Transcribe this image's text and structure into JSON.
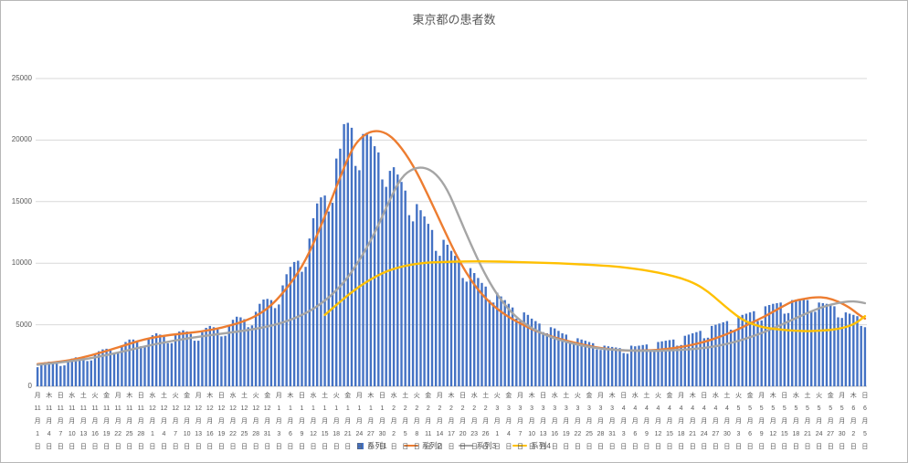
{
  "chart_data": {
    "type": "bar",
    "title": "東京都の患者数",
    "ylim": [
      0,
      25000
    ],
    "ytick_step": 5000,
    "ytick_labels": [
      "0",
      "5000",
      "10000",
      "15000",
      "20000",
      "25000"
    ],
    "n_days": 217,
    "x_start": "11月1日",
    "x_end": "6月5日",
    "xtick_every_days": 3,
    "month_suffix": "月",
    "day_suffix": "日",
    "grid": true,
    "legend_position": "bottom",
    "xticks": [
      [
        "月",
        "11",
        "1"
      ],
      [
        "木",
        "11",
        "4"
      ],
      [
        "日",
        "11",
        "7"
      ],
      [
        "水",
        "11",
        "10"
      ],
      [
        "土",
        "11",
        "13"
      ],
      [
        "火",
        "11",
        "16"
      ],
      [
        "金",
        "11",
        "19"
      ],
      [
        "月",
        "11",
        "22"
      ],
      [
        "木",
        "11",
        "25"
      ],
      [
        "日",
        "11",
        "28"
      ],
      [
        "水",
        "12",
        "1"
      ],
      [
        "土",
        "12",
        "4"
      ],
      [
        "火",
        "12",
        "7"
      ],
      [
        "金",
        "12",
        "10"
      ],
      [
        "月",
        "12",
        "13"
      ],
      [
        "木",
        "12",
        "16"
      ],
      [
        "日",
        "12",
        "19"
      ],
      [
        "水",
        "12",
        "22"
      ],
      [
        "土",
        "12",
        "25"
      ],
      [
        "火",
        "12",
        "28"
      ],
      [
        "金",
        "12",
        "31"
      ],
      [
        "月",
        "1",
        "3"
      ],
      [
        "木",
        "1",
        "6"
      ],
      [
        "日",
        "1",
        "9"
      ],
      [
        "水",
        "1",
        "12"
      ],
      [
        "土",
        "1",
        "15"
      ],
      [
        "火",
        "1",
        "18"
      ],
      [
        "金",
        "1",
        "21"
      ],
      [
        "月",
        "1",
        "24"
      ],
      [
        "木",
        "1",
        "27"
      ],
      [
        "日",
        "1",
        "30"
      ],
      [
        "水",
        "2",
        "2"
      ],
      [
        "土",
        "2",
        "5"
      ],
      [
        "火",
        "2",
        "8"
      ],
      [
        "金",
        "2",
        "11"
      ],
      [
        "月",
        "2",
        "14"
      ],
      [
        "木",
        "2",
        "17"
      ],
      [
        "日",
        "2",
        "20"
      ],
      [
        "水",
        "2",
        "23"
      ],
      [
        "土",
        "2",
        "26"
      ],
      [
        "火",
        "3",
        "1"
      ],
      [
        "金",
        "3",
        "4"
      ],
      [
        "月",
        "3",
        "7"
      ],
      [
        "木",
        "3",
        "10"
      ],
      [
        "日",
        "3",
        "13"
      ],
      [
        "水",
        "3",
        "16"
      ],
      [
        "土",
        "3",
        "19"
      ],
      [
        "火",
        "3",
        "22"
      ],
      [
        "金",
        "3",
        "25"
      ],
      [
        "月",
        "3",
        "28"
      ],
      [
        "木",
        "3",
        "31"
      ],
      [
        "日",
        "4",
        "3"
      ],
      [
        "水",
        "4",
        "6"
      ],
      [
        "土",
        "4",
        "9"
      ],
      [
        "火",
        "4",
        "12"
      ],
      [
        "金",
        "4",
        "15"
      ],
      [
        "月",
        "4",
        "18"
      ],
      [
        "木",
        "4",
        "21"
      ],
      [
        "日",
        "4",
        "24"
      ],
      [
        "水",
        "4",
        "27"
      ],
      [
        "土",
        "4",
        "30"
      ],
      [
        "火",
        "5",
        "3"
      ],
      [
        "金",
        "5",
        "6"
      ],
      [
        "月",
        "5",
        "9"
      ],
      [
        "木",
        "5",
        "12"
      ],
      [
        "日",
        "5",
        "15"
      ],
      [
        "水",
        "5",
        "18"
      ],
      [
        "土",
        "5",
        "21"
      ],
      [
        "火",
        "5",
        "24"
      ],
      [
        "金",
        "5",
        "27"
      ],
      [
        "月",
        "5",
        "30"
      ],
      [
        "木",
        "6",
        "2"
      ],
      [
        "日",
        "6",
        "5"
      ]
    ],
    "series": [
      {
        "name": "系列1",
        "type": "bar",
        "color": "#4472C4",
        "values": [
          1550,
          1800,
          1950,
          2000,
          1950,
          1900,
          1650,
          1700,
          2050,
          2250,
          2350,
          2370,
          2330,
          2050,
          2100,
          2600,
          2850,
          3000,
          3050,
          3000,
          2650,
          2700,
          3300,
          3600,
          3800,
          3800,
          3700,
          3250,
          3250,
          3900,
          4150,
          4300,
          4200,
          4050,
          3500,
          3500,
          4150,
          4450,
          4550,
          4450,
          4250,
          3700,
          3700,
          4400,
          4750,
          4900,
          4800,
          4650,
          4050,
          4100,
          4950,
          5400,
          5650,
          5600,
          5450,
          4800,
          4950,
          6050,
          6700,
          7050,
          7100,
          7000,
          6350,
          6650,
          8200,
          9100,
          9700,
          10100,
          10200,
          9300,
          9700,
          12000,
          13650,
          14850,
          15350,
          15500,
          14200,
          14900,
          18500,
          19300,
          21300,
          21400,
          21000,
          17900,
          17550,
          20500,
          20600,
          20300,
          19500,
          19000,
          16800,
          16200,
          17500,
          17800,
          17200,
          16600,
          15900,
          13900,
          13400,
          14800,
          14300,
          13800,
          13200,
          12700,
          11000,
          10600,
          11900,
          11500,
          11000,
          10600,
          10100,
          8800,
          8500,
          9600,
          9200,
          8800,
          8400,
          8100,
          7000,
          6800,
          7600,
          7300,
          7000,
          6700,
          6400,
          5500,
          5300,
          6000,
          5800,
          5500,
          5300,
          5100,
          4400,
          4300,
          4800,
          4700,
          4500,
          4300,
          4200,
          3600,
          3500,
          3900,
          3800,
          3700,
          3600,
          3500,
          3000,
          2950,
          3300,
          3250,
          3200,
          3150,
          3100,
          2700,
          2650,
          3300,
          3250,
          3300,
          3350,
          3400,
          2950,
          2900,
          3600,
          3650,
          3700,
          3750,
          3800,
          3300,
          3350,
          4100,
          4200,
          4300,
          4400,
          4500,
          3900,
          3950,
          4900,
          5000,
          5100,
          5200,
          5300,
          4600,
          4550,
          5700,
          5800,
          5900,
          6000,
          6100,
          5300,
          5350,
          6500,
          6600,
          6700,
          6750,
          6800,
          5900,
          5950,
          7000,
          7050,
          7100,
          7050,
          7000,
          6100,
          6050,
          6800,
          6750,
          6700,
          6600,
          6500,
          5600,
          5550,
          6000,
          5900,
          5800,
          5700,
          4900,
          4800
        ]
      },
      {
        "name": "系列2",
        "type": "line",
        "color": "#ED7D31",
        "points": [
          [
            0,
            1800
          ],
          [
            7,
            2000
          ],
          [
            14,
            2500
          ],
          [
            21,
            3150
          ],
          [
            28,
            3850
          ],
          [
            35,
            4200
          ],
          [
            42,
            4400
          ],
          [
            49,
            4800
          ],
          [
            56,
            5500
          ],
          [
            61,
            6500
          ],
          [
            66,
            8300
          ],
          [
            70,
            10200
          ],
          [
            74,
            13000
          ],
          [
            78,
            16200
          ],
          [
            82,
            19300
          ],
          [
            85,
            20400
          ],
          [
            88,
            20800
          ],
          [
            91,
            20600
          ],
          [
            94,
            19800
          ],
          [
            98,
            18000
          ],
          [
            102,
            15500
          ],
          [
            106,
            12800
          ],
          [
            110,
            10200
          ],
          [
            114,
            8200
          ],
          [
            118,
            6800
          ],
          [
            122,
            5800
          ],
          [
            126,
            5100
          ],
          [
            130,
            4500
          ],
          [
            134,
            4050
          ],
          [
            138,
            3700
          ],
          [
            142,
            3400
          ],
          [
            146,
            3150
          ],
          [
            150,
            2980
          ],
          [
            154,
            2900
          ],
          [
            158,
            2900
          ],
          [
            162,
            2950
          ],
          [
            166,
            3100
          ],
          [
            170,
            3300
          ],
          [
            174,
            3600
          ],
          [
            178,
            4000
          ],
          [
            182,
            4500
          ],
          [
            186,
            5100
          ],
          [
            190,
            5700
          ],
          [
            194,
            6400
          ],
          [
            197,
            6900
          ],
          [
            200,
            7100
          ],
          [
            203,
            7250
          ],
          [
            206,
            7200
          ],
          [
            209,
            6900
          ],
          [
            212,
            6400
          ],
          [
            214,
            5900
          ],
          [
            216,
            5500
          ]
        ]
      },
      {
        "name": "系列3",
        "type": "line",
        "color": "#A5A5A5",
        "points": [
          [
            0,
            1750
          ],
          [
            10,
            2050
          ],
          [
            20,
            2650
          ],
          [
            30,
            3400
          ],
          [
            40,
            3950
          ],
          [
            50,
            4350
          ],
          [
            58,
            4700
          ],
          [
            64,
            5150
          ],
          [
            70,
            5900
          ],
          [
            75,
            6900
          ],
          [
            80,
            8400
          ],
          [
            84,
            10200
          ],
          [
            88,
            12400
          ],
          [
            92,
            15200
          ],
          [
            95,
            17000
          ],
          [
            98,
            17700
          ],
          [
            101,
            17800
          ],
          [
            104,
            17300
          ],
          [
            107,
            16000
          ],
          [
            110,
            13800
          ],
          [
            113,
            11600
          ],
          [
            116,
            9600
          ],
          [
            119,
            7900
          ],
          [
            122,
            6600
          ],
          [
            125,
            5600
          ],
          [
            128,
            4900
          ],
          [
            131,
            4400
          ],
          [
            134,
            4000
          ],
          [
            137,
            3700
          ],
          [
            140,
            3450
          ],
          [
            143,
            3250
          ],
          [
            146,
            3100
          ],
          [
            149,
            3000
          ],
          [
            152,
            2950
          ],
          [
            155,
            2900
          ],
          [
            158,
            2880
          ],
          [
            161,
            2880
          ],
          [
            164,
            2900
          ],
          [
            167,
            2950
          ],
          [
            170,
            3000
          ],
          [
            173,
            3080
          ],
          [
            176,
            3200
          ],
          [
            179,
            3370
          ],
          [
            182,
            3600
          ],
          [
            185,
            3880
          ],
          [
            188,
            4200
          ],
          [
            191,
            4570
          ],
          [
            194,
            4970
          ],
          [
            197,
            5400
          ],
          [
            200,
            5820
          ],
          [
            203,
            6220
          ],
          [
            206,
            6550
          ],
          [
            209,
            6780
          ],
          [
            212,
            6900
          ],
          [
            214,
            6880
          ],
          [
            216,
            6750
          ]
        ]
      },
      {
        "name": "系列4",
        "type": "line",
        "color": "#FFC000",
        "points": [
          [
            75,
            5800
          ],
          [
            78,
            6600
          ],
          [
            81,
            7400
          ],
          [
            84,
            8100
          ],
          [
            87,
            8700
          ],
          [
            90,
            9200
          ],
          [
            93,
            9550
          ],
          [
            96,
            9800
          ],
          [
            99,
            9950
          ],
          [
            102,
            10050
          ],
          [
            106,
            10100
          ],
          [
            112,
            10150
          ],
          [
            118,
            10150
          ],
          [
            124,
            10100
          ],
          [
            130,
            10050
          ],
          [
            136,
            10000
          ],
          [
            142,
            9900
          ],
          [
            148,
            9800
          ],
          [
            152,
            9700
          ],
          [
            156,
            9550
          ],
          [
            160,
            9350
          ],
          [
            164,
            9100
          ],
          [
            168,
            8800
          ],
          [
            172,
            8300
          ],
          [
            175,
            7700
          ],
          [
            178,
            6900
          ],
          [
            181,
            6100
          ],
          [
            184,
            5400
          ],
          [
            187,
            5000
          ],
          [
            190,
            4750
          ],
          [
            194,
            4600
          ],
          [
            198,
            4500
          ],
          [
            202,
            4480
          ],
          [
            206,
            4550
          ],
          [
            209,
            4650
          ],
          [
            212,
            4900
          ],
          [
            214,
            5200
          ],
          [
            216,
            5700
          ]
        ]
      }
    ]
  }
}
